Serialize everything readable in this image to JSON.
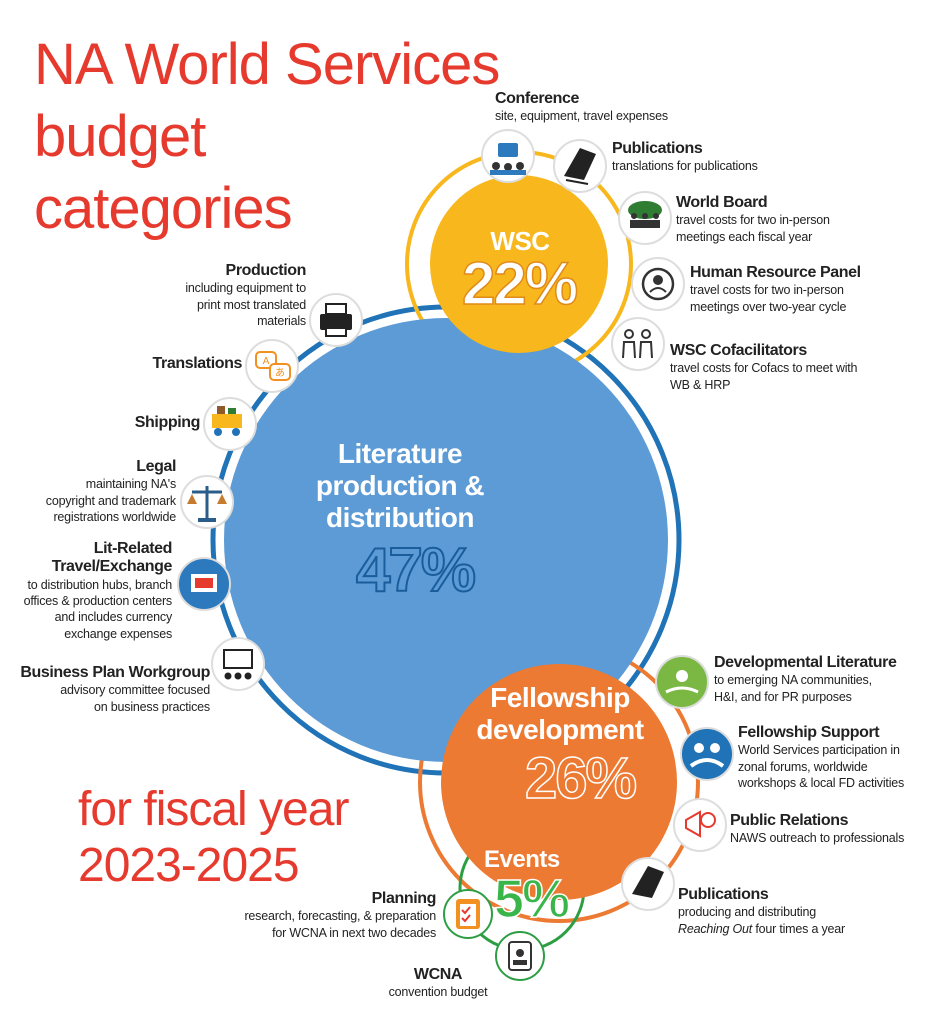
{
  "title": {
    "line1": "NA World Services",
    "line2": "budget",
    "line3": "categories"
  },
  "fiscal": {
    "line1": "for fiscal year",
    "line2": "2023-2025"
  },
  "colors": {
    "title": "#e63a2e",
    "wsc": "#f7b71d",
    "literature": "#5c9bd5",
    "fellowship": "#ec7a33",
    "events": "#2e9e44",
    "ring_blue": "#1f73b6",
    "ring_orange": "#ec7a33"
  },
  "wsc": {
    "name": "WSC",
    "percent": "22%"
  },
  "literature": {
    "line1": "Literature",
    "line2": "production &",
    "line3": "distribution",
    "percent": "47%"
  },
  "fellowship": {
    "line1": "Fellowship",
    "line2": "development",
    "percent": "26%"
  },
  "events": {
    "name": "Events",
    "percent": "5%"
  },
  "wsc_items": [
    {
      "title": "Conference",
      "desc": [
        "site, equipment, travel expenses"
      ],
      "icon": "conference-icon"
    },
    {
      "title": "Publications",
      "desc": [
        "translations for publications"
      ],
      "icon": "publications-icon"
    },
    {
      "title": "World Board",
      "desc": [
        "travel costs for two in-person",
        "meetings each fiscal year"
      ],
      "icon": "world-board-icon"
    },
    {
      "title": "Human Resource Panel",
      "desc": [
        "travel costs for two in-person",
        "meetings over two-year cycle"
      ],
      "icon": "hr-panel-icon"
    },
    {
      "title": "WSC Cofacilitators",
      "desc": [
        "travel costs for Cofacs to meet with",
        "WB & HRP"
      ],
      "icon": "cofacilitators-icon"
    }
  ],
  "lit_items": [
    {
      "title": "Production",
      "desc": [
        "including equipment to",
        "print most translated",
        "materials"
      ],
      "icon": "printer-icon"
    },
    {
      "title": "Translations",
      "desc": [],
      "icon": "translation-icon"
    },
    {
      "title": "Shipping",
      "desc": [],
      "icon": "shipping-truck-icon"
    },
    {
      "title": "Legal",
      "desc": [
        "maintaining NA's",
        "copyright and trademark",
        "registrations worldwide"
      ],
      "icon": "scales-icon"
    },
    {
      "title": "Lit-Related",
      "title2": "Travel/Exchange",
      "desc": [
        "to distribution hubs, branch",
        "offices & production centers",
        "and includes currency",
        "exchange expenses"
      ],
      "icon": "travel-exchange-icon"
    },
    {
      "title": "Business Plan Workgroup",
      "desc": [
        "advisory committee focused",
        "on business practices"
      ],
      "icon": "workgroup-icon"
    }
  ],
  "fd_items": [
    {
      "title": "Developmental Literature",
      "desc": [
        "to emerging NA communities,",
        "H&I, and for PR purposes"
      ],
      "icon": "dev-literature-icon"
    },
    {
      "title": "Fellowship Support",
      "desc": [
        "World Services participation in",
        "zonal forums, worldwide",
        "workshops & local FD activities"
      ],
      "icon": "fellowship-support-icon"
    },
    {
      "title": "Public Relations",
      "desc": [
        "NAWS outreach to professionals"
      ],
      "icon": "public-relations-icon"
    },
    {
      "title": "Publications",
      "desc": [
        "producing and distributing"
      ],
      "desc_italic": "Reaching Out",
      "desc_tail": " four times a year",
      "icon": "publications-icon"
    }
  ],
  "events_items": [
    {
      "title": "Planning",
      "desc": [
        "research, forecasting, & preparation",
        "for WCNA in next two decades"
      ],
      "icon": "planning-clipboard-icon"
    },
    {
      "title": "WCNA",
      "desc": [
        "convention budget"
      ],
      "icon": "wcna-badge-icon"
    }
  ]
}
